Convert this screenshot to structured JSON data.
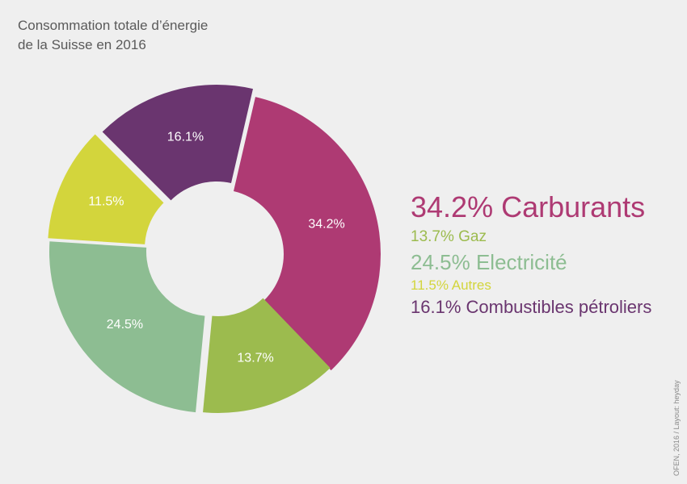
{
  "title": {
    "line1": "Consommation totale d’énergie",
    "line2": "de la Suisse en 2016"
  },
  "credit": "OFEN, 2016 / Layout: heyday",
  "chart_data": {
    "type": "pie",
    "donut": true,
    "unit": "%",
    "slices": [
      {
        "key": "carburants",
        "value": 34.2,
        "label": "34.2%",
        "legend": "34.2% Carburants",
        "color": "#ae3a73"
      },
      {
        "key": "gaz",
        "value": 13.7,
        "label": "13.7%",
        "legend": "13.7% Gaz",
        "color": "#9cbb4e"
      },
      {
        "key": "electricite",
        "value": 24.5,
        "label": "24.5%",
        "legend": "24.5% Electricité",
        "color": "#8dbd92"
      },
      {
        "key": "autres",
        "value": 11.5,
        "label": "11.5%",
        "legend": "11.5% Autres",
        "color": "#d3d53c"
      },
      {
        "key": "combustibles",
        "value": 16.1,
        "label": "16.1%",
        "legend": "16.1% Combustibles pétroliers",
        "color": "#6a356f"
      }
    ],
    "legend_position": "right"
  }
}
